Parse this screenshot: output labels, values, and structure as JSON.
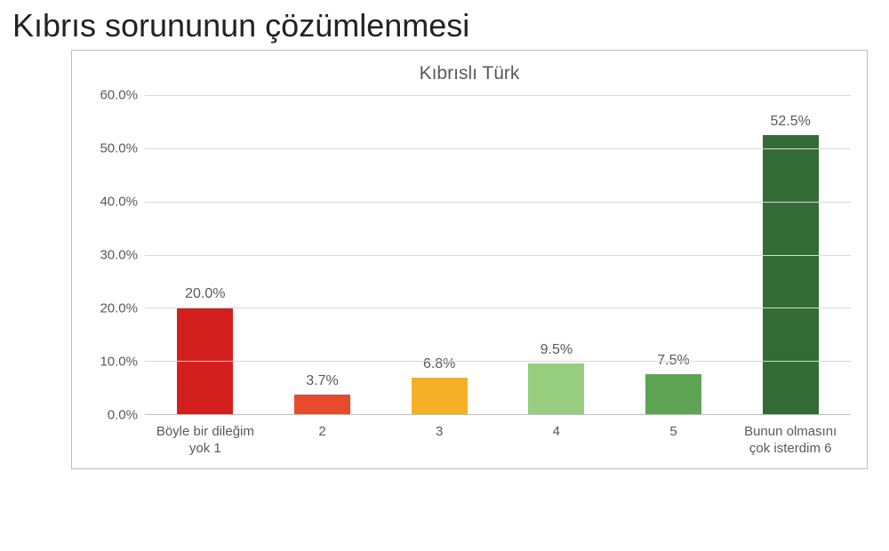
{
  "page_title": "Kıbrıs sorununun çözümlenmesi",
  "chart": {
    "type": "bar",
    "title": "Kıbrıslı Türk",
    "title_fontsize": 21,
    "title_color": "#595959",
    "background_color": "#ffffff",
    "border_color": "#bfbfbf",
    "grid_color": "#d9d9d9",
    "axis_text_color": "#595959",
    "label_fontsize": 15,
    "datalabel_fontsize": 16,
    "ylim": [
      0,
      60
    ],
    "ytick_step": 10,
    "yticks": [
      "60.0%",
      "50.0%",
      "40.0%",
      "30.0%",
      "20.0%",
      "10.0%",
      "0.0%"
    ],
    "bar_width": 0.48,
    "categories": [
      "Böyle bir dileğim yok 1",
      "2",
      "3",
      "4",
      "5",
      "Bunun olmasını çok isterdim 6"
    ],
    "values": [
      20.0,
      3.7,
      6.8,
      9.5,
      7.5,
      52.5
    ],
    "value_labels": [
      "20.0%",
      "3.7%",
      "6.8%",
      "9.5%",
      "7.5%",
      "52.5%"
    ],
    "bar_colors": [
      "#d3201f",
      "#e84a2b",
      "#f6b026",
      "#96cd7e",
      "#5ea454",
      "#326c34"
    ]
  }
}
